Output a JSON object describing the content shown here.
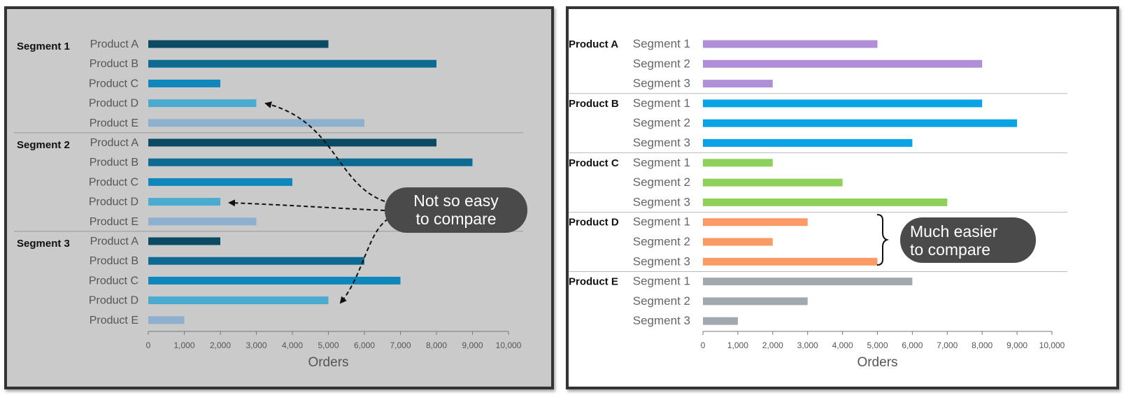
{
  "chart_data": [
    {
      "type": "bar",
      "orientation": "horizontal",
      "background": "#cacaca",
      "xlabel": "Orders",
      "xlim": [
        0,
        10000
      ],
      "xticks": [
        "0",
        "1,000",
        "2,000",
        "3,000",
        "4,000",
        "5,000",
        "6,000",
        "7,000",
        "8,000",
        "9,000",
        "10,000"
      ],
      "groups": [
        {
          "label": "Segment 1",
          "rows": [
            {
              "label": "Product A",
              "value": 5000
            },
            {
              "label": "Product B",
              "value": 8000
            },
            {
              "label": "Product C",
              "value": 2000
            },
            {
              "label": "Product D",
              "value": 3000
            },
            {
              "label": "Product E",
              "value": 6000
            }
          ]
        },
        {
          "label": "Segment 2",
          "rows": [
            {
              "label": "Product A",
              "value": 8000
            },
            {
              "label": "Product B",
              "value": 9000
            },
            {
              "label": "Product C",
              "value": 4000
            },
            {
              "label": "Product D",
              "value": 2000
            },
            {
              "label": "Product E",
              "value": 3000
            }
          ]
        },
        {
          "label": "Segment 3",
          "rows": [
            {
              "label": "Product A",
              "value": 2000
            },
            {
              "label": "Product B",
              "value": 6000
            },
            {
              "label": "Product C",
              "value": 7000
            },
            {
              "label": "Product D",
              "value": 5000
            },
            {
              "label": "Product E",
              "value": 1000
            }
          ]
        }
      ],
      "row_colors": {
        "Product A": "#0b4a63",
        "Product B": "#0c6a93",
        "Product C": "#0e88bc",
        "Product D": "#4aaad0",
        "Product E": "#8db0cf"
      },
      "annotation": {
        "lines": [
          "Not so easy",
          "to compare"
        ],
        "color": "#4a4a4a"
      }
    },
    {
      "type": "bar",
      "orientation": "horizontal",
      "background": "#ffffff",
      "xlabel": "Orders",
      "xlim": [
        0,
        10000
      ],
      "xticks": [
        "0",
        "1,000",
        "2,000",
        "3,000",
        "4,000",
        "5,000",
        "6,000",
        "7,000",
        "8,000",
        "9,000",
        "10,000"
      ],
      "groups": [
        {
          "label": "Product A",
          "color": "#b18fd8",
          "rows": [
            {
              "label": "Segment 1",
              "value": 5000
            },
            {
              "label": "Segment 2",
              "value": 8000
            },
            {
              "label": "Segment 3",
              "value": 2000
            }
          ]
        },
        {
          "label": "Product B",
          "color": "#0aa3e5",
          "rows": [
            {
              "label": "Segment 1",
              "value": 8000
            },
            {
              "label": "Segment 2",
              "value": 9000
            },
            {
              "label": "Segment 3",
              "value": 6000
            }
          ]
        },
        {
          "label": "Product C",
          "color": "#8ed15a",
          "rows": [
            {
              "label": "Segment 1",
              "value": 2000
            },
            {
              "label": "Segment 2",
              "value": 4000
            },
            {
              "label": "Segment 3",
              "value": 7000
            }
          ]
        },
        {
          "label": "Product D",
          "color": "#fb9a64",
          "rows": [
            {
              "label": "Segment 1",
              "value": 3000
            },
            {
              "label": "Segment 2",
              "value": 2000
            },
            {
              "label": "Segment 3",
              "value": 5000
            }
          ]
        },
        {
          "label": "Product E",
          "color": "#a2a9ae",
          "rows": [
            {
              "label": "Segment 1",
              "value": 6000
            },
            {
              "label": "Segment 2",
              "value": 3000
            },
            {
              "label": "Segment 3",
              "value": 1000
            }
          ]
        }
      ],
      "annotation": {
        "lines": [
          "Much easier",
          "to compare"
        ],
        "color": "#4a4a4a"
      }
    }
  ]
}
